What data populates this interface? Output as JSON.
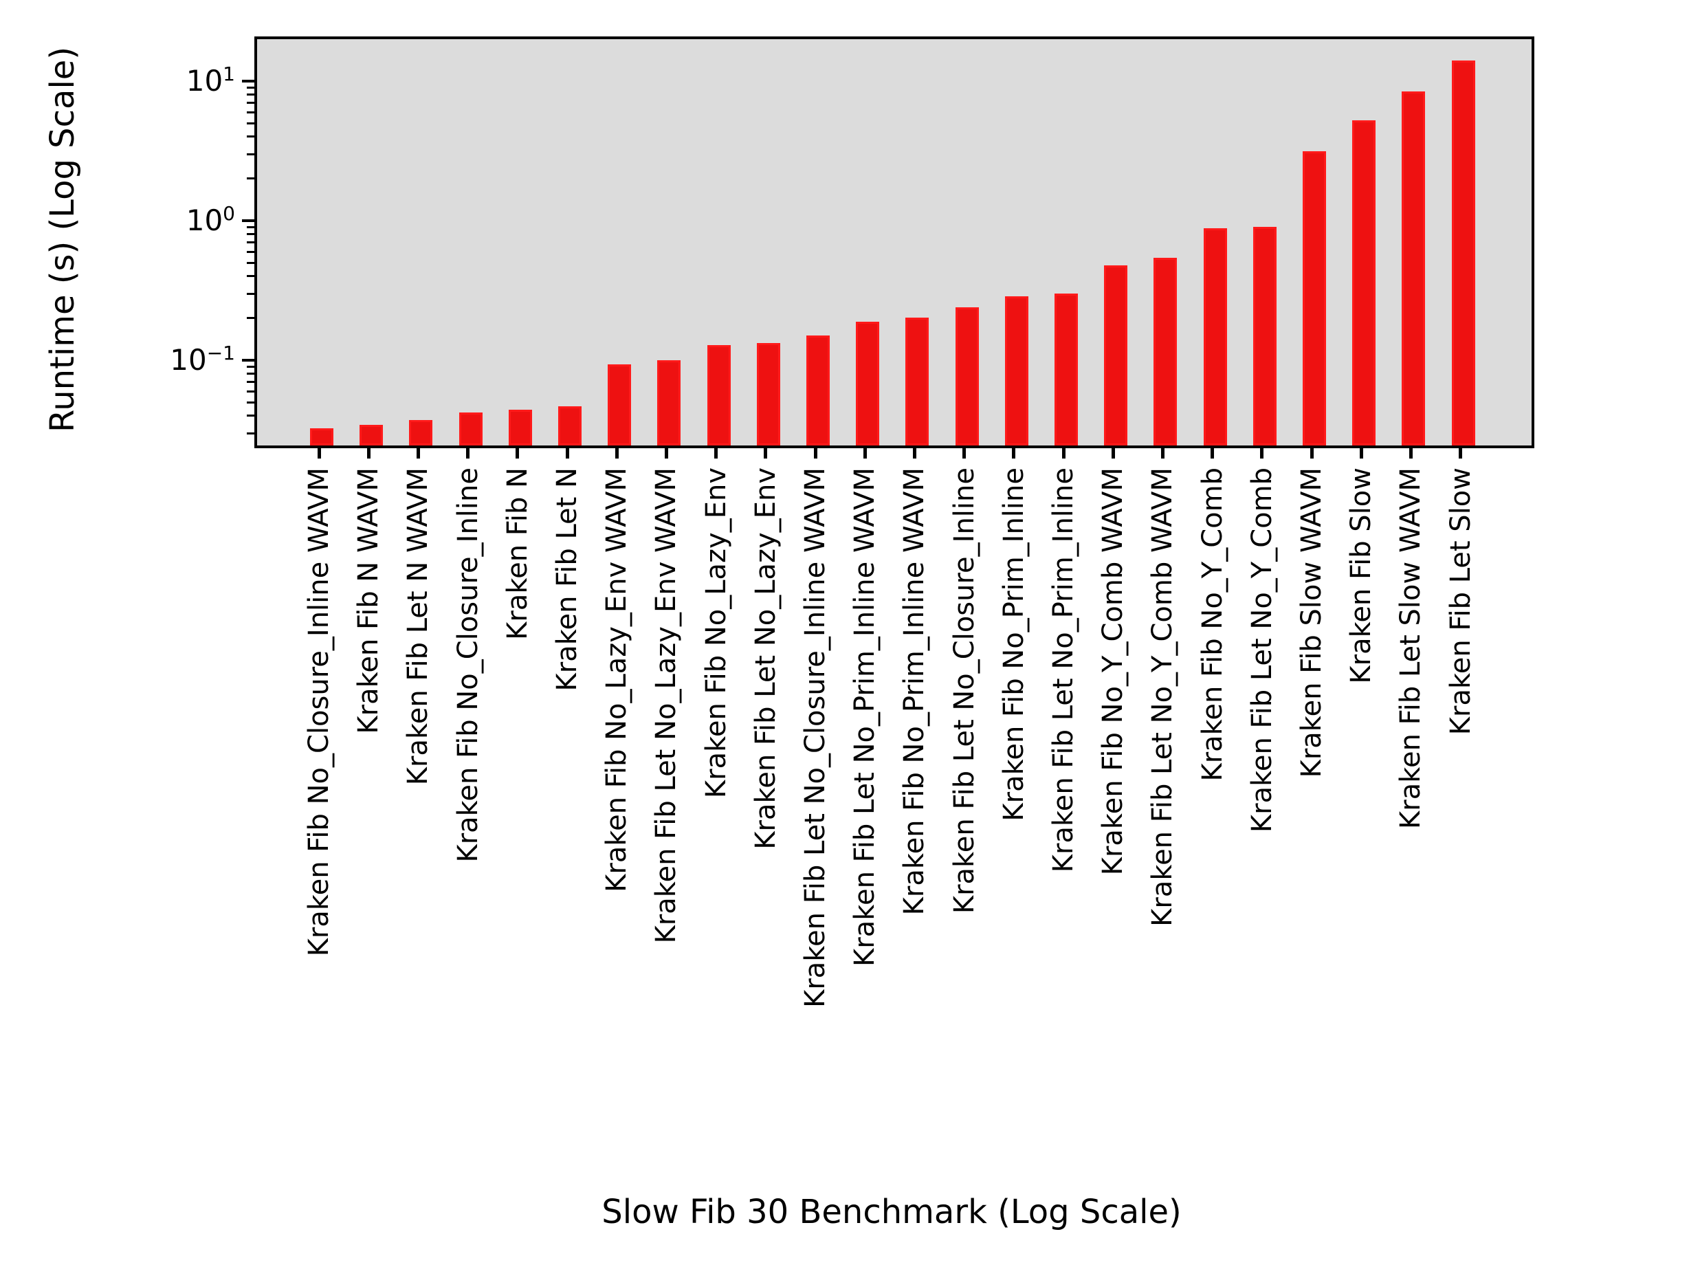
{
  "chart_data": {
    "type": "bar",
    "title": "",
    "xlabel": "Slow Fib 30 Benchmark (Log Scale)",
    "ylabel": "Runtime (s) (Log Scale)",
    "y_scale": "log",
    "ylim": [
      0.0257,
      19.8
    ],
    "grid": false,
    "legend_position": "upper right",
    "legend_entries": [],
    "y_major_tick_exponents": [
      1,
      0,
      -1
    ],
    "categories": [
      "Kraken Fib No_Closure_Inline WAVM",
      "Kraken Fib N WAVM",
      "Kraken Fib Let N WAVM",
      "Kraken Fib No_Closure_Inline",
      "Kraken Fib N",
      "Kraken Fib Let N",
      "Kraken Fib No_Lazy_Env WAVM",
      "Kraken Fib Let No_Lazy_Env WAVM",
      "Kraken Fib No_Lazy_Env",
      "Kraken Fib Let No_Lazy_Env",
      "Kraken Fib Let No_Closure_Inline WAVM",
      "Kraken Fib Let No_Prim_Inline WAVM",
      "Kraken Fib No_Prim_Inline WAVM",
      "Kraken Fib Let No_Closure_Inline",
      "Kraken Fib No_Prim_Inline",
      "Kraken Fib Let No_Prim_Inline",
      "Kraken Fib No_Y_Comb WAVM",
      "Kraken Fib Let No_Y_Comb WAVM",
      "Kraken Fib No_Y_Comb",
      "Kraken Fib Let No_Y_Comb",
      "Kraken Fib Slow WAVM",
      "Kraken Fib Slow",
      "Kraken Fib Let Slow WAVM",
      "Kraken Fib Let Slow"
    ],
    "values": [
      0.034,
      0.036,
      0.039,
      0.044,
      0.046,
      0.049,
      0.098,
      0.105,
      0.135,
      0.139,
      0.158,
      0.198,
      0.212,
      0.251,
      0.3,
      0.315,
      0.5,
      0.57,
      0.92,
      0.94,
      3.3,
      5.5,
      8.8,
      14.7
    ],
    "bar_color": "#ee1111",
    "bar_edge_color": "#ff1a1a",
    "plot_bg_color": "#dcdcdc",
    "figure_bg_color": "#ffffff"
  }
}
